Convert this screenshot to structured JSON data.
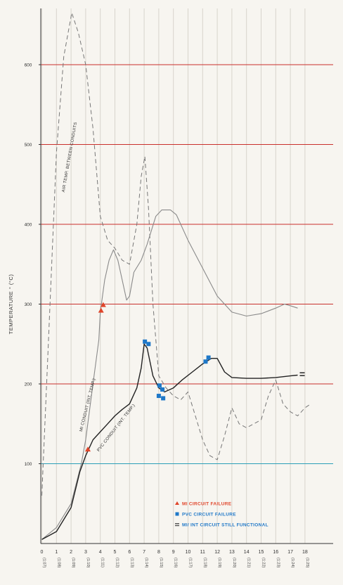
{
  "chart_data": {
    "type": "line",
    "ylabel": "TEMPERATURE ° (°C)",
    "y_ticks": [
      "100",
      "200",
      "300",
      "400",
      "500",
      "600"
    ],
    "ylim": [
      0,
      680
    ],
    "x_ticks": [
      {
        "n": "0",
        "t": "(1:07)"
      },
      {
        "n": "1",
        "t": "(1:08)"
      },
      {
        "n": "2",
        "t": "(1:09)"
      },
      {
        "n": "3",
        "t": "(1:10)"
      },
      {
        "n": "4",
        "t": "(1:11)"
      },
      {
        "n": "5",
        "t": "(1:12)"
      },
      {
        "n": "6",
        "t": "(1:13)"
      },
      {
        "n": "7",
        "t": "(1:14)"
      },
      {
        "n": "8",
        "t": "(1:15)"
      },
      {
        "n": "9",
        "t": "(1:16)"
      },
      {
        "n": "10",
        "t": "(1:17)"
      },
      {
        "n": "11",
        "t": "(1:18)"
      },
      {
        "n": "12",
        "t": "(1:19)"
      },
      {
        "n": "13",
        "t": "(1:20)"
      },
      {
        "n": "14",
        "t": "(1:21)"
      },
      {
        "n": "15",
        "t": "(1:22)"
      },
      {
        "n": "16",
        "t": "(1:23)"
      },
      {
        "n": "17",
        "t": "(1:24)"
      },
      {
        "n": "18",
        "t": "(1:25)"
      }
    ],
    "xlim": [
      0,
      18.4
    ],
    "grid": true,
    "series": [
      {
        "name": "AIR TEMP. BETWEEN CONDUITS",
        "style": "dashed",
        "color": "#777777",
        "points": [
          [
            0,
            60
          ],
          [
            0.4,
            230
          ],
          [
            1,
            490
          ],
          [
            1.5,
            610
          ],
          [
            2.05,
            665
          ],
          [
            2.5,
            640
          ],
          [
            3,
            600
          ],
          [
            3.5,
            520
          ],
          [
            4,
            410
          ],
          [
            4.5,
            380
          ],
          [
            5,
            370
          ],
          [
            5.5,
            355
          ],
          [
            6,
            350
          ],
          [
            6.5,
            400
          ],
          [
            6.8,
            460
          ],
          [
            7.05,
            485
          ],
          [
            7.3,
            420
          ],
          [
            7.6,
            300
          ],
          [
            8,
            210
          ],
          [
            8.5,
            195
          ],
          [
            9,
            185
          ],
          [
            9.5,
            180
          ],
          [
            10,
            190
          ],
          [
            10.5,
            160
          ],
          [
            11,
            130
          ],
          [
            11.5,
            110
          ],
          [
            12,
            105
          ],
          [
            12.5,
            135
          ],
          [
            13,
            170
          ],
          [
            13.5,
            150
          ],
          [
            14,
            145
          ],
          [
            14.5,
            150
          ],
          [
            15,
            155
          ],
          [
            15.5,
            185
          ],
          [
            16,
            205
          ],
          [
            16.5,
            175
          ],
          [
            17,
            165
          ],
          [
            17.5,
            160
          ],
          [
            18,
            170
          ],
          [
            18.4,
            175
          ]
        ]
      },
      {
        "name": "MI CONDUIT (INT. TEMP.)",
        "style": "solid",
        "color": "#8a8a8a",
        "points": [
          [
            0,
            5
          ],
          [
            1,
            20
          ],
          [
            2,
            50
          ],
          [
            2.7,
            100
          ],
          [
            3,
            130
          ],
          [
            3.5,
            200
          ],
          [
            3.9,
            255
          ],
          [
            4,
            290
          ],
          [
            4.3,
            330
          ],
          [
            4.6,
            355
          ],
          [
            4.9,
            368
          ],
          [
            5.2,
            355
          ],
          [
            5.5,
            330
          ],
          [
            5.8,
            305
          ],
          [
            6,
            310
          ],
          [
            6.3,
            340
          ],
          [
            6.8,
            355
          ],
          [
            7.2,
            375
          ],
          [
            7.8,
            410
          ],
          [
            8.2,
            418
          ],
          [
            8.8,
            418
          ],
          [
            9.2,
            412
          ],
          [
            10,
            380
          ],
          [
            11,
            345
          ],
          [
            12,
            310
          ],
          [
            13,
            290
          ],
          [
            14,
            285
          ],
          [
            15,
            288
          ],
          [
            16,
            295
          ],
          [
            16.6,
            300
          ],
          [
            17,
            298
          ],
          [
            17.5,
            295
          ]
        ]
      },
      {
        "name": "PVC CONDUIT (INT. TEMP.)",
        "style": "solid",
        "color": "#222222",
        "points": [
          [
            0,
            5
          ],
          [
            1,
            15
          ],
          [
            2,
            45
          ],
          [
            2.6,
            90
          ],
          [
            3,
            110
          ],
          [
            3.5,
            130
          ],
          [
            4,
            140
          ],
          [
            4.5,
            150
          ],
          [
            5,
            160
          ],
          [
            5.5,
            168
          ],
          [
            6,
            175
          ],
          [
            6.5,
            195
          ],
          [
            6.8,
            220
          ],
          [
            7,
            250
          ],
          [
            7.2,
            245
          ],
          [
            7.6,
            210
          ],
          [
            8,
            195
          ],
          [
            8.4,
            190
          ],
          [
            9,
            195
          ],
          [
            9.6,
            205
          ],
          [
            10.3,
            215
          ],
          [
            11,
            225
          ],
          [
            11.6,
            232
          ],
          [
            12,
            232
          ],
          [
            12.5,
            215
          ],
          [
            13,
            208
          ],
          [
            14,
            207
          ],
          [
            15,
            207
          ],
          [
            16,
            208
          ],
          [
            17,
            210
          ],
          [
            17.5,
            211
          ]
        ]
      }
    ],
    "markers": {
      "mi_failure": [
        [
          3.15,
          118
        ],
        [
          4.05,
          292
        ],
        [
          4.2,
          299
        ]
      ],
      "pvc_failure": [
        [
          7.05,
          253
        ],
        [
          7.3,
          250
        ],
        [
          8.05,
          198
        ],
        [
          8.25,
          193
        ],
        [
          8.0,
          185
        ],
        [
          8.3,
          182
        ],
        [
          11.2,
          228
        ],
        [
          11.4,
          233
        ]
      ],
      "still_functional": [
        [
          17.5,
          212
        ]
      ]
    },
    "labels": {
      "air": "AIR TEMP. BETWEEN CONDUITS",
      "mi": "MI CONDUIT (INT. TEMP.)",
      "pvc": "PVC CONDUIT (INT. TEMP.)"
    },
    "legend": {
      "position": "bottom-right",
      "items": [
        {
          "label": "MI CIRCUIT FAILURE",
          "color": "#e0452a",
          "marker": "triangle"
        },
        {
          "label": "PVC CIRCUIT FAILURE",
          "color": "#1f78c8",
          "marker": "square"
        },
        {
          "label": "MI/ INT CIRCUIT STILL FUNCTIONAL",
          "color": "#1f78c8",
          "marker": "bar"
        }
      ]
    },
    "colors": {
      "background": "#f7f5f0",
      "h_grid": "#c9302c",
      "h_grid_100": "#2a9fb8",
      "v_grid": "#d8d4cc",
      "axis": "#333333"
    }
  }
}
